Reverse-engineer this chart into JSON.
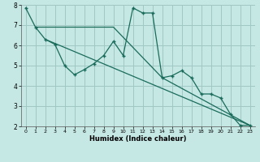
{
  "xlabel": "Humidex (Indice chaleur)",
  "bg_color": "#c5e8e5",
  "grid_color": "#a0c8c5",
  "line_color": "#1a6b5a",
  "xlim": [
    -0.5,
    23.5
  ],
  "ylim": [
    2,
    8
  ],
  "xticks": [
    0,
    1,
    2,
    3,
    4,
    5,
    6,
    7,
    8,
    9,
    10,
    11,
    12,
    13,
    14,
    15,
    16,
    17,
    18,
    19,
    20,
    21,
    22,
    23
  ],
  "yticks": [
    2,
    3,
    4,
    5,
    6,
    7,
    8
  ],
  "series1_x": [
    0,
    1,
    2,
    3,
    4,
    5,
    6,
    7,
    8,
    9,
    10,
    11,
    12,
    13,
    14,
    15,
    16,
    17,
    18,
    19,
    20,
    21,
    22,
    23
  ],
  "series1_y": [
    7.85,
    6.9,
    6.3,
    6.05,
    5.0,
    4.55,
    4.8,
    5.1,
    5.5,
    6.2,
    5.5,
    7.85,
    7.6,
    7.6,
    4.4,
    4.5,
    4.75,
    4.4,
    3.6,
    3.6,
    3.4,
    2.6,
    2.05,
    2.05
  ],
  "series2_x": [
    1,
    9,
    14,
    23
  ],
  "series2_y": [
    6.9,
    6.9,
    4.4,
    2.05
  ],
  "series3_x": [
    2,
    23
  ],
  "series3_y": [
    6.3,
    2.05
  ]
}
